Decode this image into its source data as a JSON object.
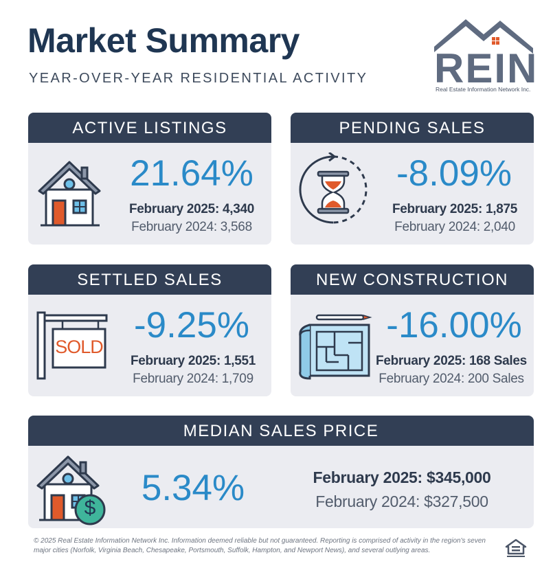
{
  "header": {
    "title": "Market Summary",
    "subtitle": "YEAR-OVER-YEAR RESIDENTIAL ACTIVITY"
  },
  "logo": {
    "wordmark": "REIN",
    "tagline": "Real Estate Information Network Inc."
  },
  "cards": [
    {
      "heading": "ACTIVE LISTINGS",
      "change": "21.64%",
      "current": "February 2025: 4,340",
      "previous": "February 2024: 3,568",
      "icon": "house-icon"
    },
    {
      "heading": "PENDING SALES",
      "change": "-8.09%",
      "current": "February 2025: 1,875",
      "previous": "February 2024: 2,040",
      "icon": "hourglass-icon"
    },
    {
      "heading": "SETTLED SALES",
      "change": "-9.25%",
      "current": "February 2025: 1,551",
      "previous": "February 2024: 1,709",
      "icon": "sold-sign-icon",
      "sign_text": "SOLD"
    },
    {
      "heading": "NEW CONSTRUCTION",
      "change": "-16.00%",
      "current": "February 2025: 168 Sales",
      "previous": "February 2024: 200 Sales",
      "icon": "blueprint-icon"
    },
    {
      "heading": "MEDIAN SALES PRICE",
      "change": "5.34%",
      "current": "February 2025: $345,000",
      "previous": "February 2024: $327,500",
      "icon": "house-dollar-icon",
      "coin_text": "$"
    }
  ],
  "footer": {
    "disclaimer": "© 2025 Real Estate Information Network Inc. Information deemed reliable but not guaranteed. Reporting is comprised of activity in the region's seven major cities (Norfolk, Virginia Beach, Chesapeake, Portsmouth, Suffolk, Hampton, and Newport News), and several outlying areas."
  },
  "colors": {
    "header_bar": "#323f55",
    "card_bg": "#ebecf1",
    "percent_blue": "#2a8ac8",
    "title_navy": "#1f3652",
    "accent_orange": "#e05a2b"
  }
}
